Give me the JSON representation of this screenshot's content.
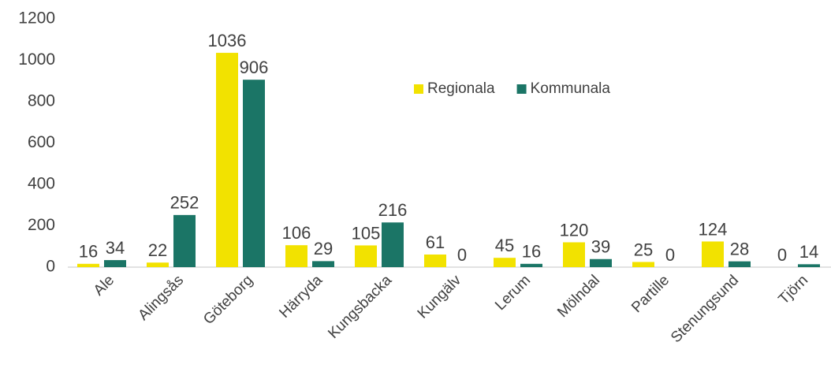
{
  "chart_data": {
    "type": "bar",
    "categories": [
      "Ale",
      "Alingsås",
      "Göteborg",
      "Härryda",
      "Kungsbacka",
      "Kungälv",
      "Lerum",
      "Mölndal",
      "Partille",
      "Stenungsund",
      "Tjörn"
    ],
    "series": [
      {
        "name": "Regionala",
        "color": "#f2e200",
        "values": [
          16,
          22,
          1036,
          106,
          105,
          61,
          45,
          120,
          25,
          124,
          0
        ]
      },
      {
        "name": "Kommunala",
        "color": "#1b7566",
        "values": [
          34,
          252,
          906,
          29,
          216,
          0,
          16,
          39,
          0,
          28,
          14
        ]
      }
    ],
    "ylim": [
      0,
      1200
    ],
    "yticks": [
      0,
      200,
      400,
      600,
      800,
      1000,
      1200
    ],
    "grid": false,
    "legend": "upper center"
  }
}
